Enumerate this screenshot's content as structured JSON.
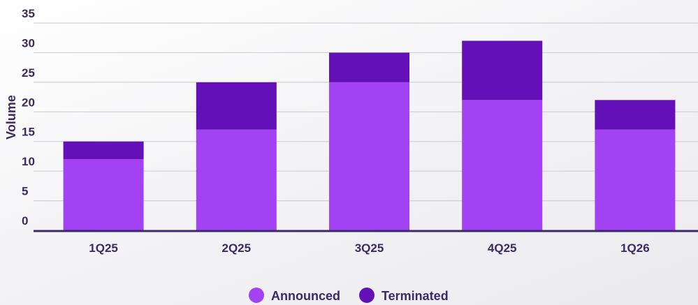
{
  "chart_data": {
    "type": "bar",
    "stacked": true,
    "categories": [
      "1Q25",
      "2Q25",
      "3Q25",
      "4Q25",
      "1Q26"
    ],
    "series": [
      {
        "name": "Announced",
        "values": [
          12,
          17,
          25,
          22,
          17
        ],
        "color": "#a342f2"
      },
      {
        "name": "Terminated",
        "values": [
          3,
          8,
          5,
          10,
          5
        ],
        "color": "#6410b8"
      }
    ],
    "ylabel": "Volume",
    "xlabel": "",
    "ylim": [
      0,
      35
    ],
    "yticks": [
      "0",
      "5",
      "10",
      "15",
      "20",
      "25",
      "30",
      "35"
    ],
    "grid": true,
    "legend_position": "bottom-center"
  }
}
